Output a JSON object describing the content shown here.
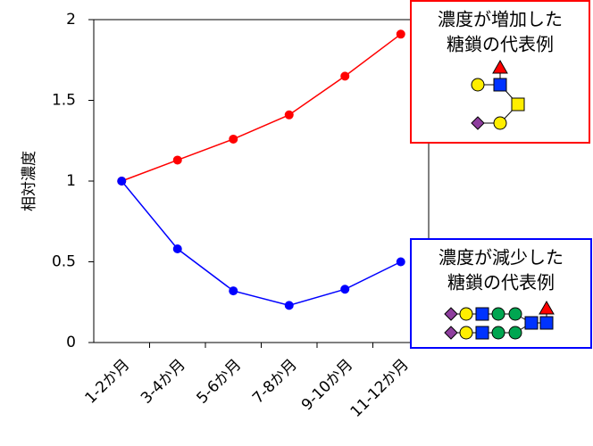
{
  "chart_data": {
    "type": "line",
    "y_label": "相対濃度",
    "categories": [
      "1-2か月",
      "3-4か月",
      "5-6か月",
      "7-8か月",
      "9-10か月",
      "11-12か月"
    ],
    "series": [
      {
        "color": "#ff0000",
        "values": [
          1.0,
          1.13,
          1.26,
          1.41,
          1.65,
          1.91
        ]
      },
      {
        "color": "#0000ff",
        "values": [
          1.0,
          0.58,
          0.32,
          0.23,
          0.33,
          0.5
        ]
      }
    ],
    "ylim": [
      0,
      2
    ],
    "yticks": [
      0,
      0.5,
      1,
      1.5,
      2
    ],
    "annotations": [
      {
        "lines": [
          "濃度が増加した",
          "糖鎖の代表例"
        ],
        "color": "#ff0000"
      },
      {
        "lines": [
          "濃度が減少した",
          "糖鎖の代表例"
        ],
        "color": "#0000ff"
      }
    ]
  }
}
